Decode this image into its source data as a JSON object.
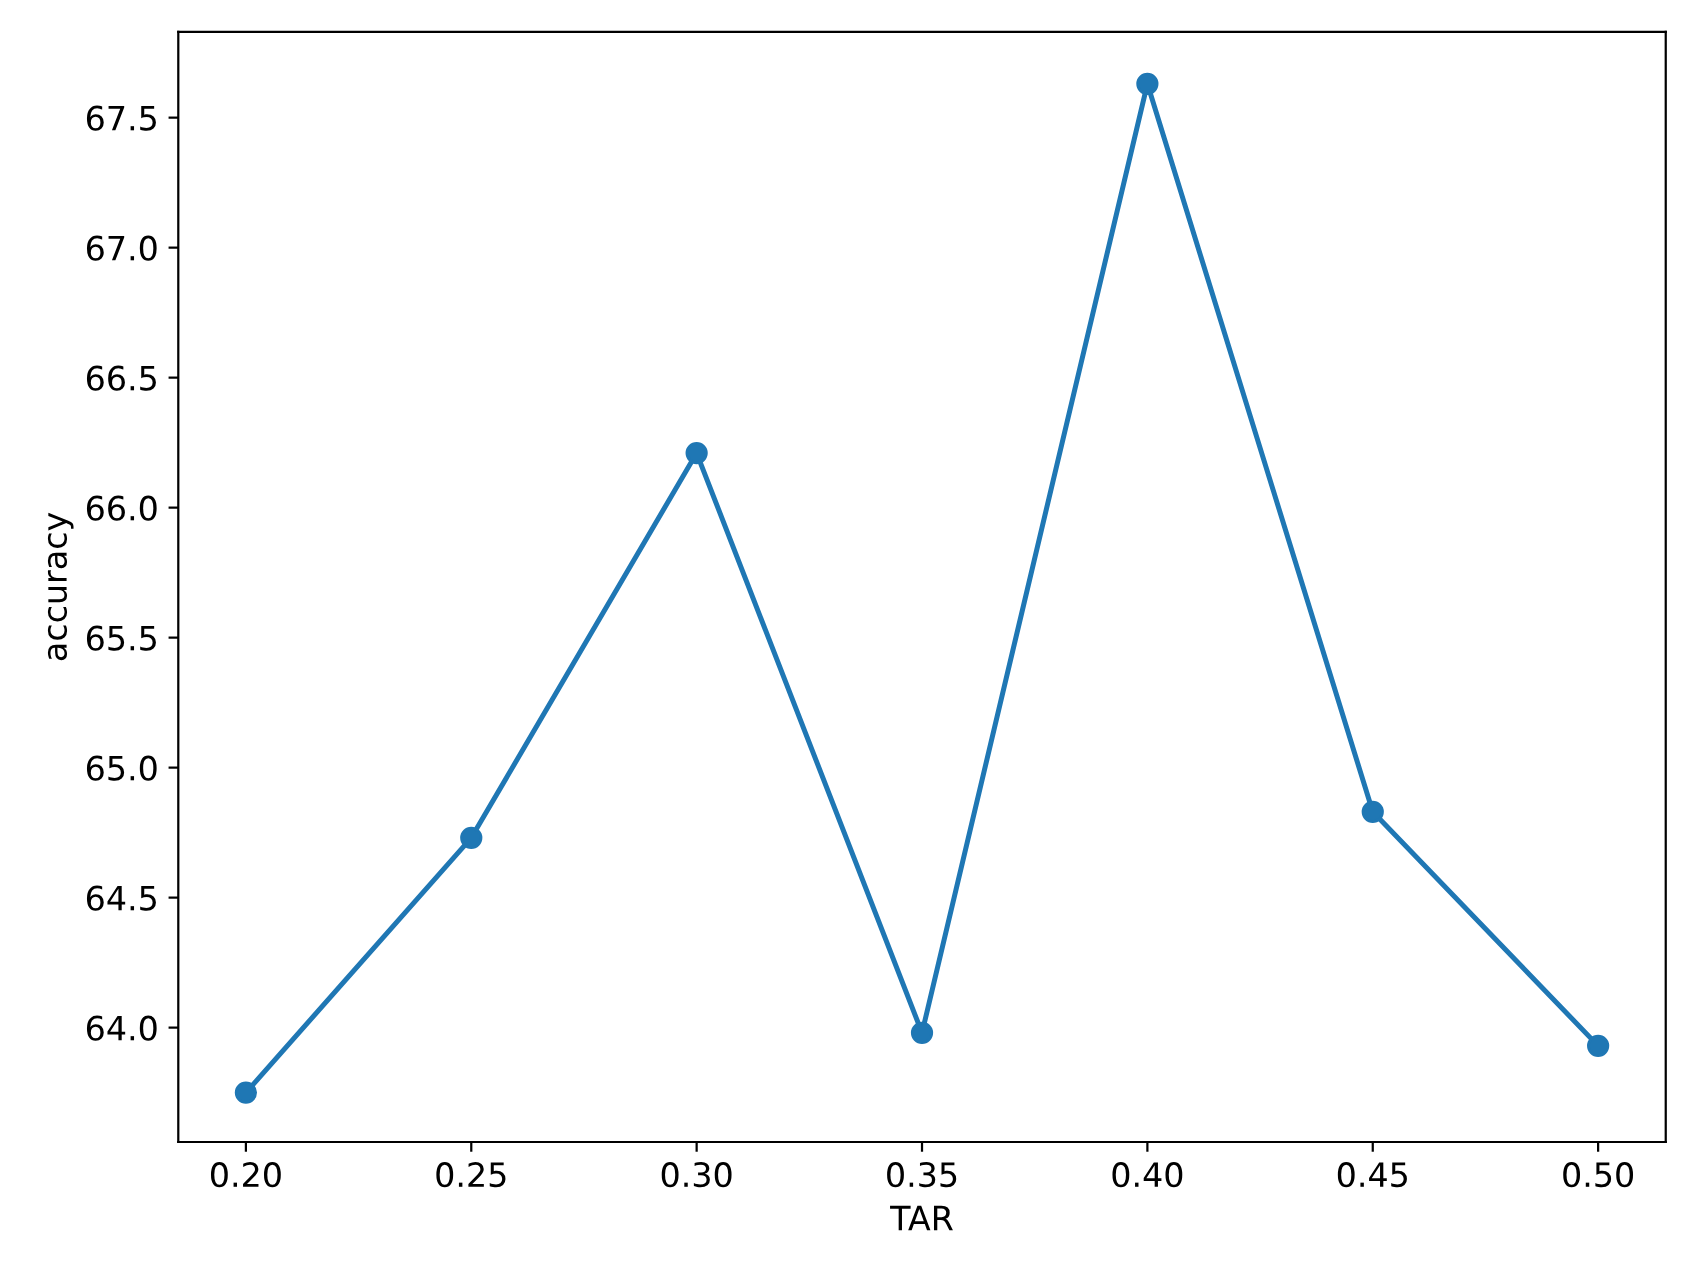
{
  "chart_data": {
    "type": "line",
    "xlabel": "TAR",
    "ylabel": "accuracy",
    "x": [
      0.2,
      0.25,
      0.3,
      0.35,
      0.4,
      0.45,
      0.5
    ],
    "series": [
      {
        "color": "#1f77b4",
        "values": [
          63.75,
          64.73,
          66.21,
          63.98,
          67.63,
          64.83,
          63.93
        ]
      }
    ],
    "xlim": [
      0.185,
      0.515
    ],
    "xticks": [
      {
        "value": 0.2,
        "label": "0.20"
      },
      {
        "value": 0.25,
        "label": "0.25"
      },
      {
        "value": 0.3,
        "label": "0.30"
      },
      {
        "value": 0.35,
        "label": "0.35"
      },
      {
        "value": 0.4,
        "label": "0.40"
      },
      {
        "value": 0.45,
        "label": "0.45"
      },
      {
        "value": 0.5,
        "label": "0.50"
      }
    ],
    "ylim": [
      63.56,
      67.83
    ],
    "yticks": [
      {
        "value": 64.0,
        "label": "64.0"
      },
      {
        "value": 64.5,
        "label": "64.5"
      },
      {
        "value": 65.0,
        "label": "65.0"
      },
      {
        "value": 65.5,
        "label": "65.5"
      },
      {
        "value": 66.0,
        "label": "66.0"
      },
      {
        "value": 66.5,
        "label": "66.5"
      },
      {
        "value": 67.0,
        "label": "67.0"
      },
      {
        "value": 67.5,
        "label": "67.5"
      }
    ],
    "marker": "circle",
    "line_style": "solid"
  }
}
